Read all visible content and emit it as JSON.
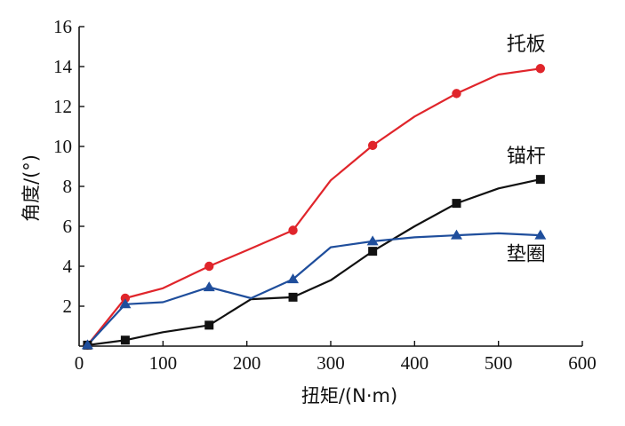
{
  "chart_data": {
    "type": "line",
    "xlabel": "扭矩/(N·m)",
    "ylabel": "角度/(°)",
    "xlim": [
      0,
      600
    ],
    "ylim": [
      0,
      16
    ],
    "xticks": [
      0,
      100,
      200,
      300,
      400,
      500,
      600
    ],
    "yticks": [
      2,
      4,
      6,
      8,
      10,
      12,
      14,
      16
    ],
    "grid": false,
    "series": [
      {
        "name": "托板",
        "color": "#e0252b",
        "marker": "circle",
        "x": [
          10,
          55,
          100,
          155,
          200,
          255,
          300,
          350,
          400,
          450,
          500,
          550
        ],
        "y": [
          0.05,
          2.4,
          2.9,
          4.0,
          4.8,
          5.8,
          8.3,
          10.05,
          11.5,
          12.65,
          13.6,
          13.9
        ],
        "marker_idx": [
          0,
          1,
          3,
          5,
          7,
          9,
          11
        ]
      },
      {
        "name": "锚杆",
        "color": "#111111",
        "marker": "square",
        "x": [
          10,
          55,
          100,
          155,
          205,
          255,
          300,
          350,
          400,
          450,
          500,
          550
        ],
        "y": [
          0.05,
          0.3,
          0.7,
          1.05,
          2.35,
          2.45,
          3.3,
          4.75,
          6.0,
          7.15,
          7.9,
          8.35
        ],
        "marker_idx": [
          0,
          1,
          3,
          5,
          7,
          9,
          11
        ]
      },
      {
        "name": "垫圈",
        "color": "#1f4e9c",
        "marker": "triangle",
        "x": [
          10,
          55,
          100,
          155,
          205,
          255,
          300,
          350,
          400,
          450,
          500,
          550
        ],
        "y": [
          0.05,
          2.1,
          2.2,
          2.95,
          2.4,
          3.35,
          4.95,
          5.25,
          5.45,
          5.55,
          5.65,
          5.55
        ],
        "marker_idx": [
          0,
          1,
          3,
          5,
          7,
          9,
          11
        ]
      }
    ],
    "annotations": [
      {
        "text": "托板",
        "series": 0,
        "at_x": 533,
        "at_y": 14.8
      },
      {
        "text": "锚杆",
        "series": 1,
        "at_x": 533,
        "at_y": 9.2
      },
      {
        "text": "垫圈",
        "series": 2,
        "at_x": 533,
        "at_y": 4.3
      }
    ]
  }
}
